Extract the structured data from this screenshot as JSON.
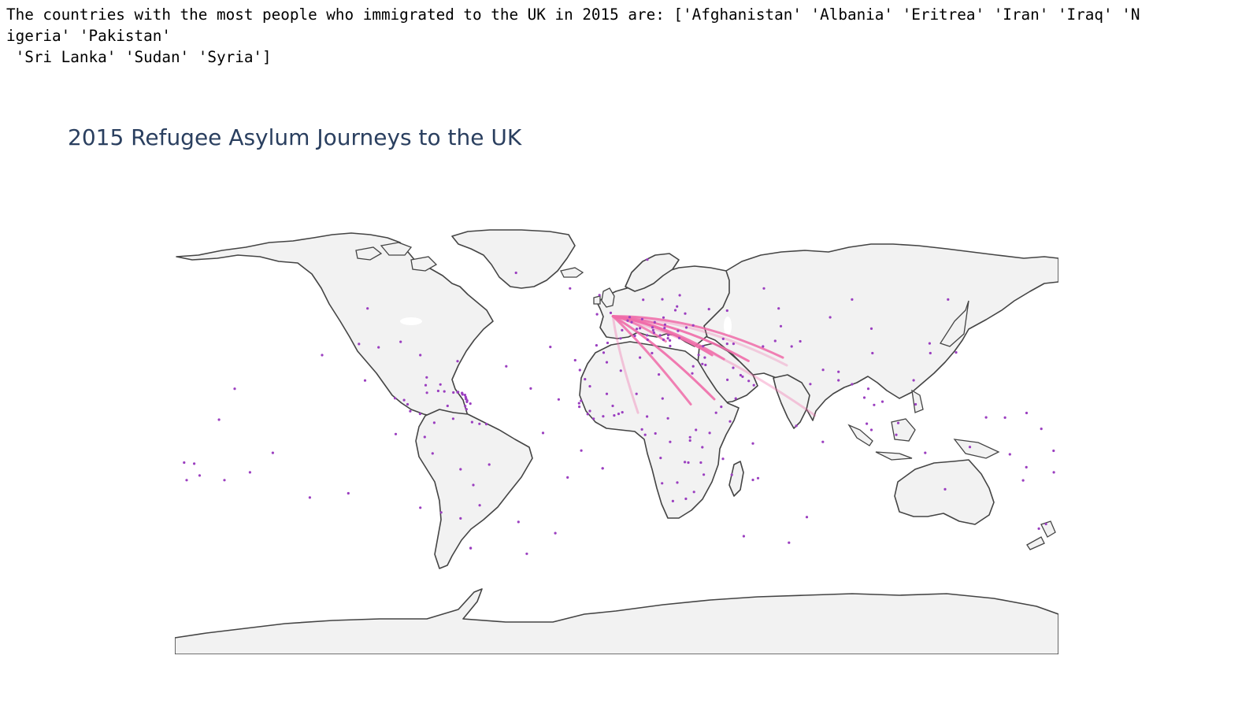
{
  "output": {
    "lines": [
      "The countries with the most people who immigrated to the UK in 2015 are: ['Afghanistan' 'Albania' 'Eritrea' 'Iran' 'Iraq' 'N",
      "igeria' 'Pakistan'",
      " 'Sri Lanka' 'Sudan' 'Syria']"
    ]
  },
  "map": {
    "title": "2015 Refugee Asylum Journeys to the UK",
    "projection": "equirectangular",
    "colors": {
      "land": "#f2f2f2",
      "coastline": "#444444",
      "ocean": "#ffffff",
      "route": "#f06ba8",
      "point": "#9b3fc0",
      "title": "#2a3f5f"
    },
    "destination": {
      "name": "United Kingdom",
      "lon": -1.5,
      "lat": 52.5
    },
    "routes": [
      {
        "origin": "Afghanistan",
        "lon": 67.7,
        "lat": 33.9,
        "intensity": 0.85
      },
      {
        "origin": "Albania",
        "lon": 20.0,
        "lat": 41.2,
        "intensity": 0.8
      },
      {
        "origin": "Eritrea",
        "lon": 39.8,
        "lat": 15.2,
        "intensity": 0.9
      },
      {
        "origin": "Iran",
        "lon": 53.7,
        "lat": 32.4,
        "intensity": 0.9
      },
      {
        "origin": "Iraq",
        "lon": 43.7,
        "lat": 33.2,
        "intensity": 0.85
      },
      {
        "origin": "Nigeria",
        "lon": 8.7,
        "lat": 9.1,
        "intensity": 0.35
      },
      {
        "origin": "Pakistan",
        "lon": 69.3,
        "lat": 30.4,
        "intensity": 0.3
      },
      {
        "origin": "Sri Lanka",
        "lon": 80.8,
        "lat": 7.9,
        "intensity": 0.35
      },
      {
        "origin": "Sudan",
        "lon": 30.2,
        "lat": 12.9,
        "intensity": 0.85
      },
      {
        "origin": "Syria",
        "lon": 38.9,
        "lat": 35.0,
        "intensity": 0.9
      }
    ],
    "points": [
      [
        -101.5,
        56.0
      ],
      [
        -97.0,
        38.5
      ],
      [
        -102.5,
        23.6
      ],
      [
        -90.3,
        15.6
      ],
      [
        -86.6,
        14.8
      ],
      [
        -85.2,
        12.9
      ],
      [
        -84.1,
        9.8
      ],
      [
        -80.1,
        8.6
      ],
      [
        -77.8,
        21.5
      ],
      [
        -72.7,
        18.9
      ],
      [
        -70.2,
        18.7
      ],
      [
        -77.3,
        18.1
      ],
      [
        -66.5,
        18.2
      ],
      [
        -61.3,
        15.4
      ],
      [
        -61.0,
        14.0
      ],
      [
        -59.6,
        13.2
      ],
      [
        -61.2,
        10.7
      ],
      [
        -74.3,
        4.6
      ],
      [
        -66.6,
        6.4
      ],
      [
        -58.9,
        4.9
      ],
      [
        -55.9,
        4.1
      ],
      [
        -53.1,
        4.0
      ],
      [
        -78.2,
        -1.8
      ],
      [
        -75.0,
        -9.2
      ],
      [
        -51.9,
        -14.2
      ],
      [
        -63.6,
        -16.3
      ],
      [
        -58.4,
        -23.4
      ],
      [
        -55.8,
        -32.5
      ],
      [
        -71.5,
        -35.7
      ],
      [
        -63.6,
        -38.4
      ],
      [
        -59.5,
        -51.8
      ],
      [
        -41.0,
        72.0
      ],
      [
        -19.0,
        65.0
      ],
      [
        -7.0,
        62.0
      ],
      [
        10.8,
        59.9
      ],
      [
        18.6,
        60.1
      ],
      [
        25.7,
        61.9
      ],
      [
        24.6,
        56.9
      ],
      [
        23.9,
        55.2
      ],
      [
        27.9,
        53.7
      ],
      [
        19.1,
        51.9
      ],
      [
        10.4,
        51.2
      ],
      [
        4.5,
        50.5
      ],
      [
        6.1,
        49.8
      ],
      [
        5.3,
        52.1
      ],
      [
        2.2,
        46.2
      ],
      [
        8.2,
        46.8
      ],
      [
        14.6,
        47.5
      ],
      [
        15.5,
        49.8
      ],
      [
        19.7,
        48.7
      ],
      [
        19.5,
        47.2
      ],
      [
        25.0,
        45.9
      ],
      [
        31.2,
        48.4
      ],
      [
        28.4,
        47.4
      ],
      [
        25.5,
        42.7
      ],
      [
        21.0,
        44.0
      ],
      [
        17.7,
        43.9
      ],
      [
        15.2,
        45.1
      ],
      [
        14.9,
        46.2
      ],
      [
        12.6,
        41.9
      ],
      [
        21.8,
        39.1
      ],
      [
        -3.7,
        40.5
      ],
      [
        -8.2,
        39.4
      ],
      [
        35.2,
        39.0
      ],
      [
        43.4,
        42.3
      ],
      [
        45.0,
        40.1
      ],
      [
        47.6,
        40.1
      ],
      [
        66.9,
        48.0
      ],
      [
        64.6,
        41.4
      ],
      [
        59.6,
        38.9
      ],
      [
        74.8,
        41.2
      ],
      [
        71.3,
        38.9
      ],
      [
        103.8,
        46.9
      ],
      [
        104.2,
        35.9
      ],
      [
        127.8,
        35.9
      ],
      [
        127.5,
        40.3
      ],
      [
        138.3,
        36.2
      ],
      [
        121.0,
        23.7
      ],
      [
        90.4,
        27.5
      ],
      [
        84.1,
        28.4
      ],
      [
        90.4,
        23.7
      ],
      [
        95.9,
        21.9
      ],
      [
        100.9,
        15.9
      ],
      [
        102.5,
        19.9
      ],
      [
        104.9,
        12.6
      ],
      [
        108.3,
        14.1
      ],
      [
        114.7,
        4.5
      ],
      [
        101.9,
        4.2
      ],
      [
        103.8,
        1.4
      ],
      [
        113.9,
        -0.8
      ],
      [
        121.8,
        12.9
      ],
      [
        125.7,
        -8.9
      ],
      [
        143.9,
        -6.3
      ],
      [
        160.2,
        -9.6
      ],
      [
        166.9,
        -15.4
      ],
      [
        178.1,
        -17.7
      ],
      [
        165.6,
        -21.3
      ],
      [
        133.8,
        -25.3
      ],
      [
        174.9,
        -40.9
      ],
      [
        78.9,
        22.0
      ],
      [
        73.2,
        3.2
      ],
      [
        84.0,
        -4.0
      ],
      [
        57.6,
        -20.3
      ],
      [
        55.5,
        -21.1
      ],
      [
        55.5,
        -4.7
      ],
      [
        46.9,
        -18.8
      ],
      [
        43.3,
        -11.6
      ],
      [
        -4.0,
        31.8
      ],
      [
        9.5,
        33.9
      ],
      [
        1.7,
        28.0
      ],
      [
        17.2,
        26.3
      ],
      [
        30.8,
        26.8
      ],
      [
        -10.9,
        21.0
      ],
      [
        -12.9,
        24.2
      ],
      [
        -4.0,
        17.6
      ],
      [
        8.1,
        17.6
      ],
      [
        18.7,
        15.5
      ],
      [
        -14.5,
        14.5
      ],
      [
        -15.3,
        13.4
      ],
      [
        -15.2,
        11.8
      ],
      [
        -10.9,
        9.9
      ],
      [
        -11.8,
        8.5
      ],
      [
        -9.4,
        6.4
      ],
      [
        -5.5,
        7.5
      ],
      [
        -1.0,
        7.9
      ],
      [
        0.8,
        8.6
      ],
      [
        2.3,
        9.3
      ],
      [
        -1.6,
        12.2
      ],
      [
        12.4,
        7.4
      ],
      [
        10.3,
        1.6
      ],
      [
        11.6,
        -0.8
      ],
      [
        15.8,
        -0.2
      ],
      [
        20.9,
        6.6
      ],
      [
        21.8,
        -4.0
      ],
      [
        29.9,
        -1.9
      ],
      [
        29.9,
        -3.4
      ],
      [
        32.3,
        1.4
      ],
      [
        37.9,
        0.0
      ],
      [
        40.5,
        9.1
      ],
      [
        46.2,
        5.2
      ],
      [
        42.6,
        11.8
      ],
      [
        34.9,
        -6.4
      ],
      [
        27.8,
        -13.1
      ],
      [
        29.2,
        -13.3
      ],
      [
        34.3,
        -13.3
      ],
      [
        35.5,
        -18.7
      ],
      [
        17.9,
        -11.2
      ],
      [
        18.5,
        -22.6
      ],
      [
        24.7,
        -22.3
      ],
      [
        31.5,
        -26.5
      ],
      [
        28.2,
        -29.6
      ],
      [
        22.9,
        -30.6
      ],
      [
        -5.7,
        -15.9
      ],
      [
        -14.4,
        -7.9
      ],
      [
        -23.6,
        15.1
      ],
      [
        -15.0,
        28.3
      ],
      [
        -27.0,
        38.7
      ],
      [
        -64.8,
        32.3
      ],
      [
        -77.4,
        25.0
      ],
      [
        -71.8,
        21.8
      ],
      [
        -64.6,
        18.4
      ],
      [
        -63.0,
        17.9
      ],
      [
        -68.9,
        12.2
      ],
      [
        -61.4,
        15.3
      ],
      [
        -149.4,
        -17.7
      ],
      [
        -140.1,
        -8.9
      ],
      [
        -159.8,
        -21.2
      ],
      [
        -169.9,
        -19.1
      ],
      [
        -172.1,
        -13.8
      ],
      [
        -175.2,
        -21.2
      ],
      [
        -176.2,
        -13.3
      ],
      [
        -155.6,
        19.9
      ],
      [
        -162.0,
        6.0
      ],
      [
        -125.0,
        -29.0
      ],
      [
        -109.3,
        -27.1
      ],
      [
        -5.7,
        -15.9
      ],
      [
        -80.0,
        -33.6
      ],
      [
        -90.0,
        -0.5
      ],
      [
        -59.5,
        -51.7
      ],
      [
        -36.6,
        -54.3
      ],
      [
        12.5,
        78.0
      ],
      [
        150.5,
        7.0
      ],
      [
        158.2,
        6.9
      ],
      [
        167.0,
        9.0
      ],
      [
        173.0,
        1.9
      ],
      [
        178.0,
        -8.0
      ],
      [
        172.0,
        -43.0
      ],
      [
        51.3,
        25.3
      ],
      [
        50.5,
        26.0
      ],
      [
        53.8,
        23.4
      ],
      [
        55.9,
        21.5
      ],
      [
        48.5,
        15.5
      ],
      [
        45.1,
        23.9
      ],
      [
        47.5,
        29.3
      ],
      [
        36.2,
        30.6
      ],
      [
        35.9,
        33.9
      ],
      [
        33.4,
        35.1
      ],
      [
        34.9,
        31.0
      ],
      [
        31.2,
        30.0
      ],
      [
        14.4,
        35.9
      ],
      [
        70.2,
        -49.3
      ],
      [
        51.8,
        -46.4
      ],
      [
        77.5,
        -37.8
      ],
      [
        -2.4,
        54.0
      ],
      [
        -8.0,
        53.4
      ],
      [
        19.1,
        41.9
      ],
      [
        20.9,
        42.6
      ],
      [
        21.7,
        41.6
      ],
      [
        12.4,
        43.9
      ],
      [
        9.5,
        47.1
      ],
      [
        7.4,
        43.7
      ],
      [
        1.6,
        42.5
      ],
      [
        -5.3,
        36.1
      ],
      [
        -16.9,
        32.7
      ],
      [
        95.9,
        60.0
      ],
      [
        60.0,
        65.0
      ],
      [
        135.0,
        60.0
      ],
      [
        45.0,
        55.0
      ],
      [
        37.6,
        55.7
      ],
      [
        66.0,
        56.0
      ],
      [
        87.0,
        52.0
      ],
      [
        -105.0,
        40.0
      ],
      [
        -120.0,
        35.0
      ],
      [
        -88.0,
        41.0
      ],
      [
        -80.0,
        35.0
      ],
      [
        -45.0,
        30.0
      ],
      [
        -35.0,
        20.0
      ],
      [
        -30.0,
        0.0
      ],
      [
        -20.0,
        -20.0
      ],
      [
        -40.0,
        -40.0
      ],
      [
        -25.0,
        -45.0
      ],
      [
        -64.8,
        18.3
      ],
      [
        -61.8,
        17.1
      ],
      [
        -62.8,
        17.3
      ],
      [
        -60.9,
        14.6
      ],
      [
        -61.7,
        12.1
      ],
      [
        -61.5,
        16.2
      ],
      [
        -63.0,
        18.0
      ]
    ]
  }
}
